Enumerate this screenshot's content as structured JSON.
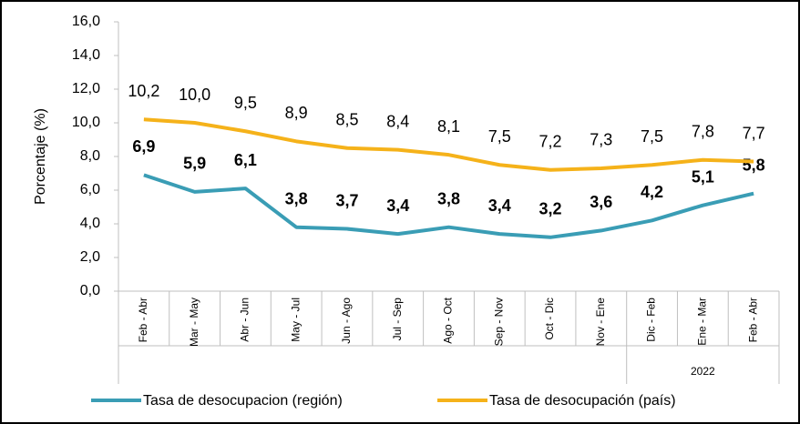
{
  "chart_data": {
    "type": "line",
    "y_axis_label": "Porcentaje (%)",
    "categories": [
      "Feb - Abr",
      "Mar - May",
      "Abr - Jun",
      "May - Jul",
      "Jun - Ago",
      "Jul - Sep",
      "Ago - Oct",
      "Sep - Nov",
      "Oct - Dic",
      "Nov - Ene",
      "Dic - Feb",
      "Ene - Mar",
      "Feb - Abr"
    ],
    "x_group_label": "2022",
    "series": [
      {
        "name": "Tasa de desocupacion (región)",
        "color": "#3a9db5",
        "values": [
          6.9,
          5.9,
          6.1,
          3.8,
          3.7,
          3.4,
          3.8,
          3.4,
          3.2,
          3.6,
          4.2,
          5.1,
          5.8
        ],
        "value_labels": [
          "6,9",
          "5,9",
          "6,1",
          "3,8",
          "3,7",
          "3,4",
          "3,8",
          "3,4",
          "3,2",
          "3,6",
          "4,2",
          "5,1",
          "5,8"
        ]
      },
      {
        "name": "Tasa de desocupación (país)",
        "color": "#f5b21a",
        "values": [
          10.2,
          10.0,
          9.5,
          8.9,
          8.5,
          8.4,
          8.1,
          7.5,
          7.2,
          7.3,
          7.5,
          7.8,
          7.7
        ],
        "value_labels": [
          "10,2",
          "10,0",
          "9,5",
          "8,9",
          "8,5",
          "8,4",
          "8,1",
          "7,5",
          "7,2",
          "7,3",
          "7,5",
          "7,8",
          "7,7"
        ]
      }
    ],
    "ylim": [
      0,
      16
    ],
    "yticks": [
      {
        "value": 0,
        "label": "0,0"
      },
      {
        "value": 2,
        "label": "2,0"
      },
      {
        "value": 4,
        "label": "4,0"
      },
      {
        "value": 6,
        "label": "6,0"
      },
      {
        "value": 8,
        "label": "8,0"
      },
      {
        "value": 10,
        "label": "10,0"
      },
      {
        "value": 12,
        "label": "12,0"
      },
      {
        "value": 14,
        "label": "14,0"
      },
      {
        "value": 16,
        "label": "16,0"
      }
    ],
    "grid": false,
    "legend": "bottom"
  }
}
